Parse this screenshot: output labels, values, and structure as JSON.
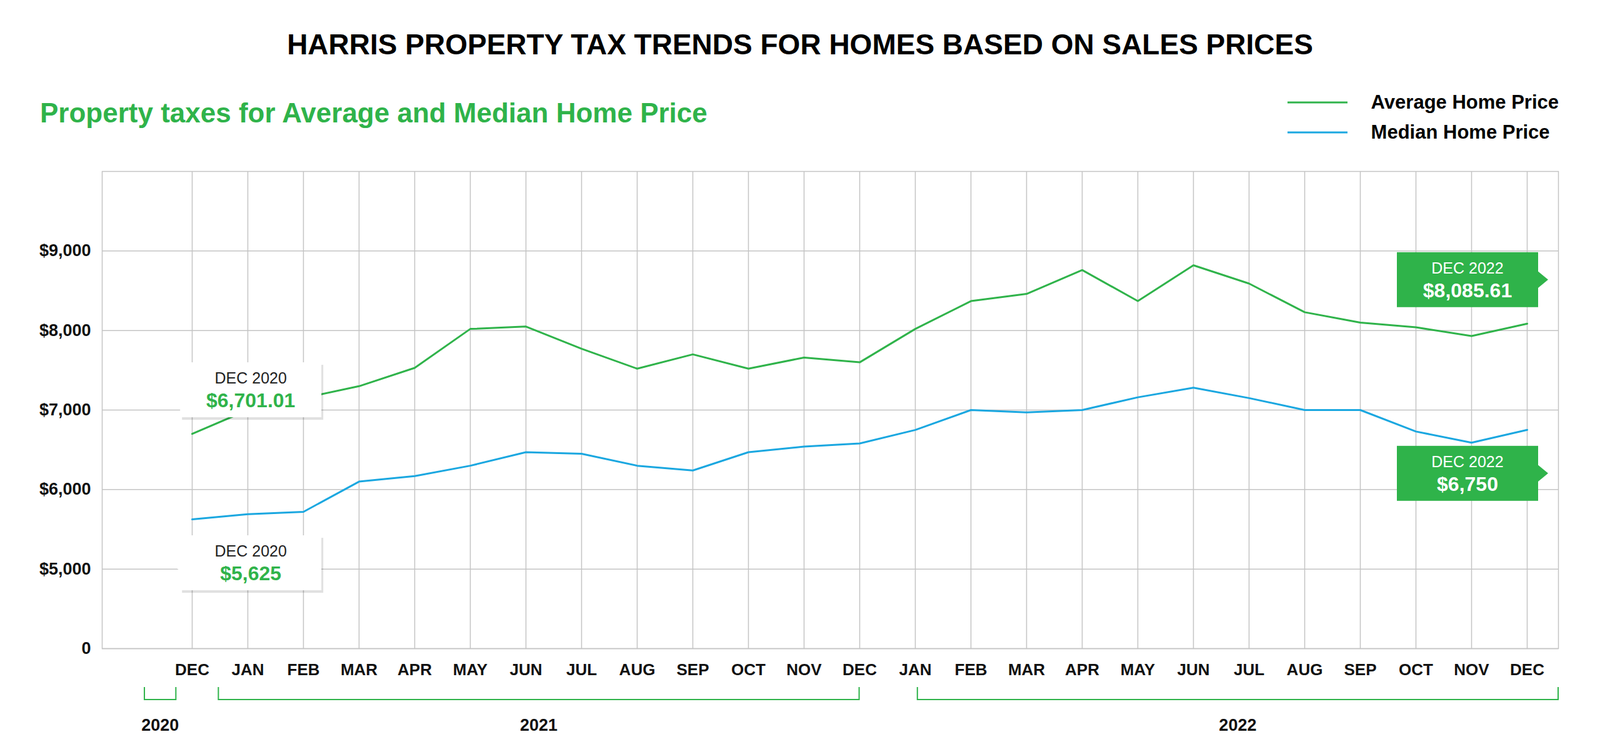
{
  "chart_data": {
    "type": "line",
    "title": "HARRIS PROPERTY TAX TRENDS FOR HOMES BASED ON SALES PRICES",
    "subtitle": "Property taxes for Average and Median Home Price",
    "categories": [
      "DEC",
      "JAN",
      "FEB",
      "MAR",
      "APR",
      "MAY",
      "JUN",
      "JUL",
      "AUG",
      "SEP",
      "OCT",
      "NOV",
      "DEC",
      "JAN",
      "FEB",
      "MAR",
      "APR",
      "MAY",
      "JUN",
      "JUL",
      "AUG",
      "SEP",
      "OCT",
      "NOV",
      "DEC"
    ],
    "x_groups": [
      {
        "label": "2020",
        "count": 1
      },
      {
        "label": "2021",
        "count": 12
      },
      {
        "label": "2022",
        "count": 12
      }
    ],
    "series": [
      {
        "name": "Average Home Price",
        "color": "#2fb34a",
        "values": [
          6701.01,
          7000,
          7150,
          7300,
          7530,
          8020,
          8050,
          7770,
          7520,
          7700,
          7520,
          7660,
          7600,
          8020,
          8370,
          8460,
          8760,
          8370,
          8820,
          8590,
          8230,
          8100,
          8040,
          7930,
          8085.61
        ]
      },
      {
        "name": "Median Home Price",
        "color": "#1aa7e0",
        "values": [
          5625,
          5690,
          5720,
          6100,
          6170,
          6300,
          6470,
          6450,
          6300,
          6240,
          6470,
          6540,
          6580,
          6750,
          7000,
          6970,
          7000,
          7160,
          7280,
          7150,
          7000,
          7000,
          6730,
          6590,
          6750
        ]
      }
    ],
    "annotations": [
      {
        "series": "Average Home Price",
        "index": 0,
        "title": "DEC 2020",
        "label": "$6,701.01"
      },
      {
        "series": "Median Home Price",
        "index": 0,
        "title": "DEC 2020",
        "label": "$5,625"
      },
      {
        "series": "Average Home Price",
        "index": 24,
        "title": "DEC 2022",
        "label": "$8,085.61"
      },
      {
        "series": "Median Home Price",
        "index": 24,
        "title": "DEC 2022",
        "label": "$6,750"
      }
    ],
    "ylim": [
      0,
      10000
    ],
    "yticks": [
      0,
      {
        "value": 5000,
        "label": "$5,000"
      },
      {
        "value": 6000,
        "label": "$6,000"
      },
      {
        "value": 7000,
        "label": "$7,000"
      },
      {
        "value": 8000,
        "label": "$8,000"
      },
      {
        "value": 9000,
        "label": "$9,000"
      }
    ],
    "grid": true,
    "legend": "top-right"
  }
}
